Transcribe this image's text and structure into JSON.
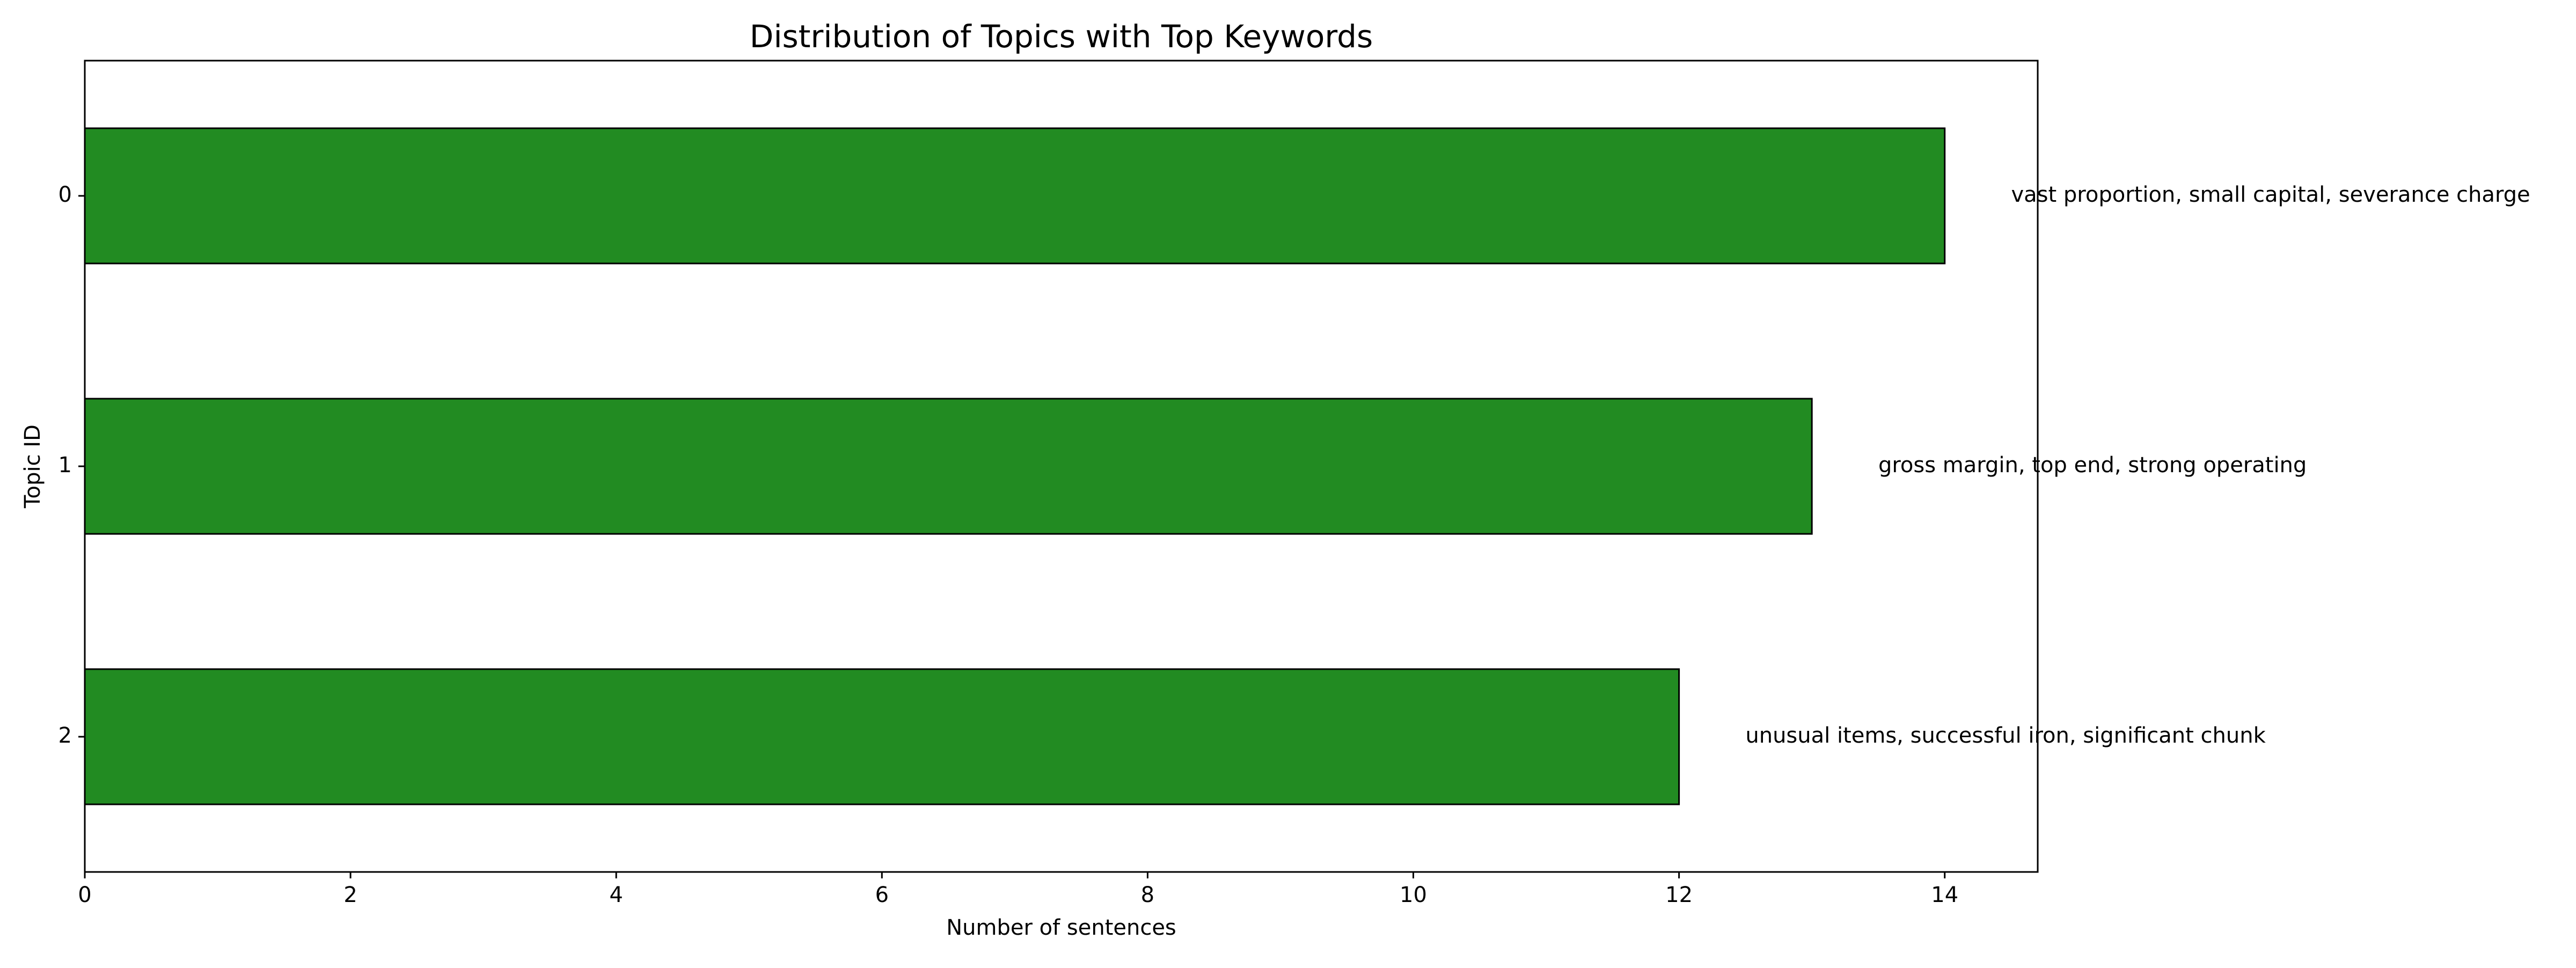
{
  "chart_data": {
    "type": "bar",
    "orientation": "horizontal",
    "title": "Distribution of Topics with Top Keywords",
    "xlabel": "Number of sentences",
    "ylabel": "Topic ID",
    "categories": [
      "0",
      "1",
      "2"
    ],
    "values": [
      14,
      13,
      12
    ],
    "annotations": [
      "vast proportion, small capital, severance charge",
      "gross margin, top end, strong operating",
      "unusual items, successful iron, significant chunk"
    ],
    "xlim": [
      0,
      14.7
    ],
    "xticks": [
      0,
      2,
      4,
      6,
      8,
      10,
      12,
      14
    ],
    "y_inverted": true,
    "grid": false,
    "legend": "none",
    "colors": {
      "bar_fill": "#228B22",
      "bar_edge": "#000000",
      "axis": "#000000",
      "text": "#000000"
    }
  }
}
